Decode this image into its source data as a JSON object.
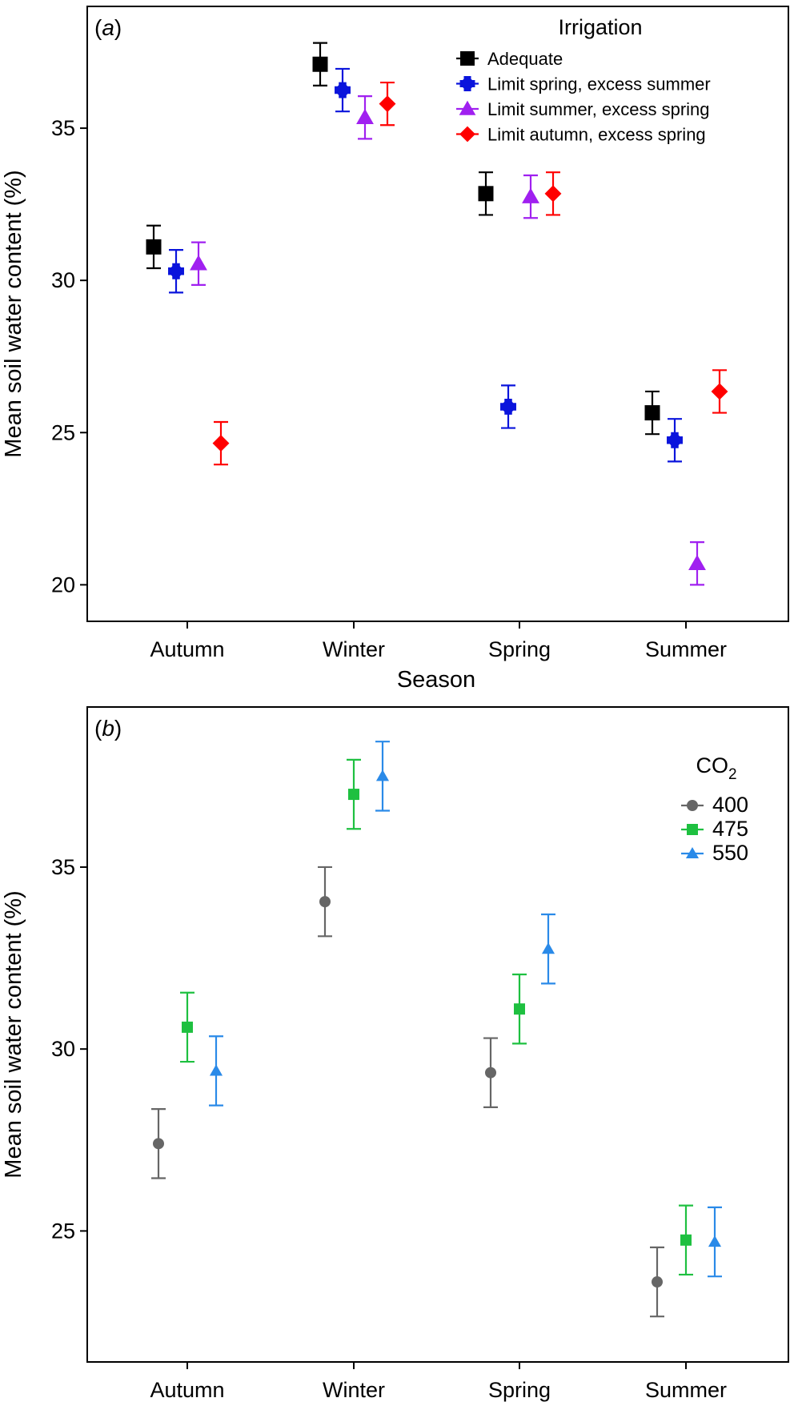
{
  "chart_data": [
    {
      "type": "scatter",
      "panel_label": "(a)",
      "panel_letter": "a",
      "xlabel": "Season",
      "ylabel": "Mean soil water content (%)",
      "categories": [
        "Autumn",
        "Winter",
        "Spring",
        "Summer"
      ],
      "ylim": [
        18.8,
        39.0
      ],
      "yticks": [
        20,
        25,
        30,
        35
      ],
      "legend_title": "Irrigation",
      "legend_position": "top-right",
      "series": [
        {
          "name": "Adequate",
          "color": "#000000",
          "marker": "square",
          "values": [
            31.1,
            37.1,
            32.85,
            25.65
          ],
          "errors": [
            0.7,
            0.7,
            0.7,
            0.7
          ]
        },
        {
          "name": "Limit spring, excess summer",
          "color": "#0a14dc",
          "marker": "circle-cross",
          "values": [
            30.3,
            36.25,
            25.85,
            24.75
          ],
          "errors": [
            0.7,
            0.7,
            0.7,
            0.7
          ]
        },
        {
          "name": "Limit summer, excess spring",
          "color": "#a020f0",
          "marker": "triangle",
          "values": [
            30.55,
            35.35,
            32.75,
            20.7
          ],
          "errors": [
            0.7,
            0.7,
            0.7,
            0.7
          ]
        },
        {
          "name": "Limit autumn, excess spring",
          "color": "#ff0000",
          "marker": "diamond",
          "values": [
            24.65,
            35.8,
            32.85,
            26.35
          ],
          "errors": [
            0.7,
            0.7,
            0.7,
            0.7
          ]
        }
      ]
    },
    {
      "type": "scatter",
      "panel_label": "(b)",
      "panel_letter": "b",
      "xlabel": "",
      "ylabel": "Mean soil water content (%)",
      "categories": [
        "Autumn",
        "Winter",
        "Spring",
        "Summer"
      ],
      "ylim": [
        21.4,
        39.4
      ],
      "yticks": [
        25,
        30,
        35
      ],
      "legend_title": "CO2",
      "legend_title_main": "CO",
      "legend_title_sub": "2",
      "legend_position": "top-right",
      "series": [
        {
          "name": "400",
          "color": "#666666",
          "marker": "circle",
          "values": [
            27.4,
            34.05,
            29.35,
            23.6
          ],
          "errors": [
            0.95,
            0.95,
            0.95,
            0.95
          ]
        },
        {
          "name": "475",
          "color": "#1ec040",
          "marker": "square",
          "values": [
            30.6,
            37.0,
            31.1,
            24.75
          ],
          "errors": [
            0.95,
            0.95,
            0.95,
            0.95
          ]
        },
        {
          "name": "550",
          "color": "#2a8ae8",
          "marker": "triangle",
          "values": [
            29.4,
            37.5,
            32.75,
            24.7
          ],
          "errors": [
            0.95,
            0.95,
            0.95,
            0.95
          ]
        }
      ]
    }
  ]
}
